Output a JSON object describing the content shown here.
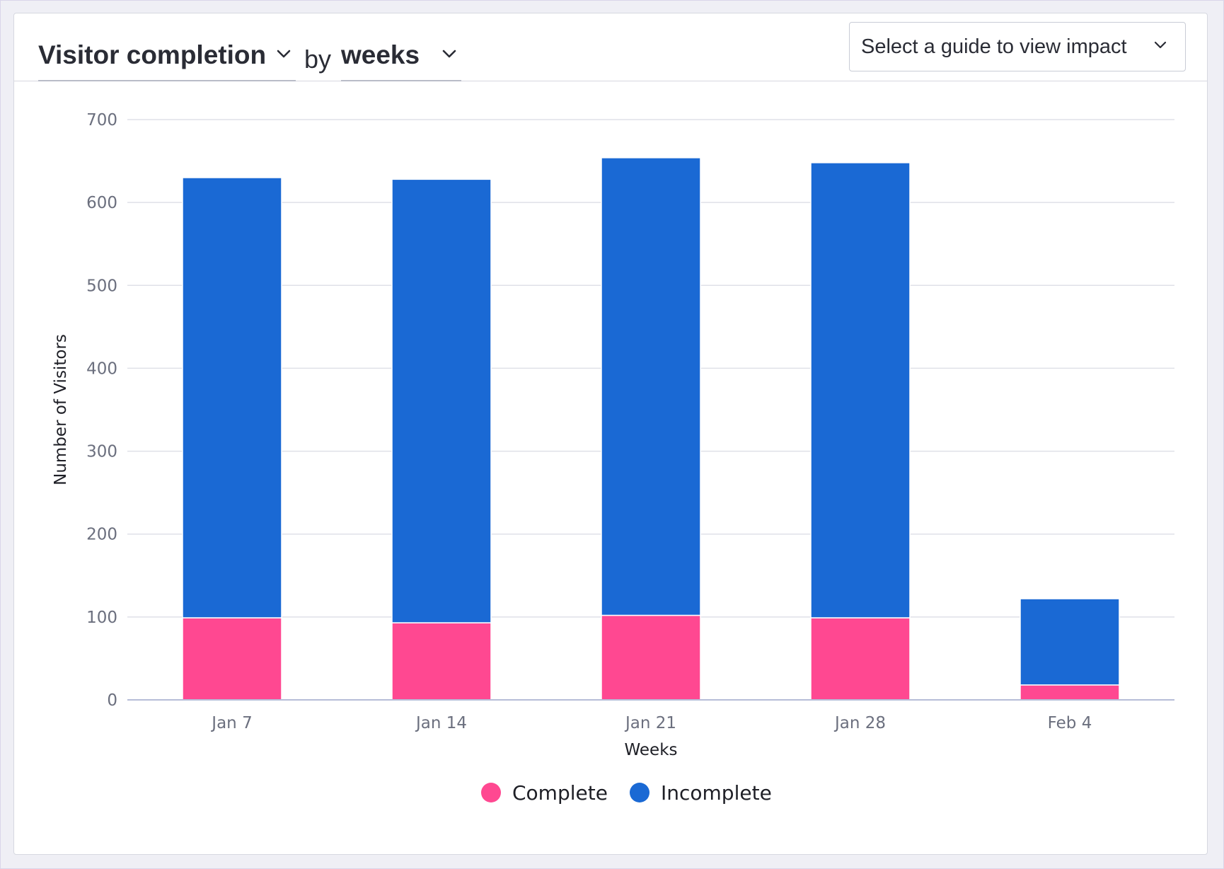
{
  "header": {
    "metric_label": "Visitor completion",
    "by_text": "by",
    "period_label": "weeks",
    "guide_placeholder": "Select a guide to view impact",
    "chevron_icon": "chevron-down-icon"
  },
  "colors": {
    "complete": "#ff4891",
    "incomplete": "#1a69d4",
    "grid": "#dfe1e8",
    "axis": "#b6bdd8"
  },
  "chart_data": {
    "type": "bar",
    "stacked": true,
    "categories": [
      "Jan 7",
      "Jan 14",
      "Jan 21",
      "Jan 28",
      "Feb 4"
    ],
    "series": [
      {
        "name": "Complete",
        "values": [
          99,
          93,
          102,
          99,
          18
        ]
      },
      {
        "name": "Incomplete",
        "values": [
          531,
          535,
          552,
          549,
          104
        ]
      }
    ],
    "xlabel": "Weeks",
    "ylabel": "Number of Visitors",
    "ylim": [
      0,
      700
    ],
    "yticks": [
      0,
      100,
      200,
      300,
      400,
      500,
      600,
      700
    ],
    "grid": true,
    "legend_position": "bottom-center"
  }
}
